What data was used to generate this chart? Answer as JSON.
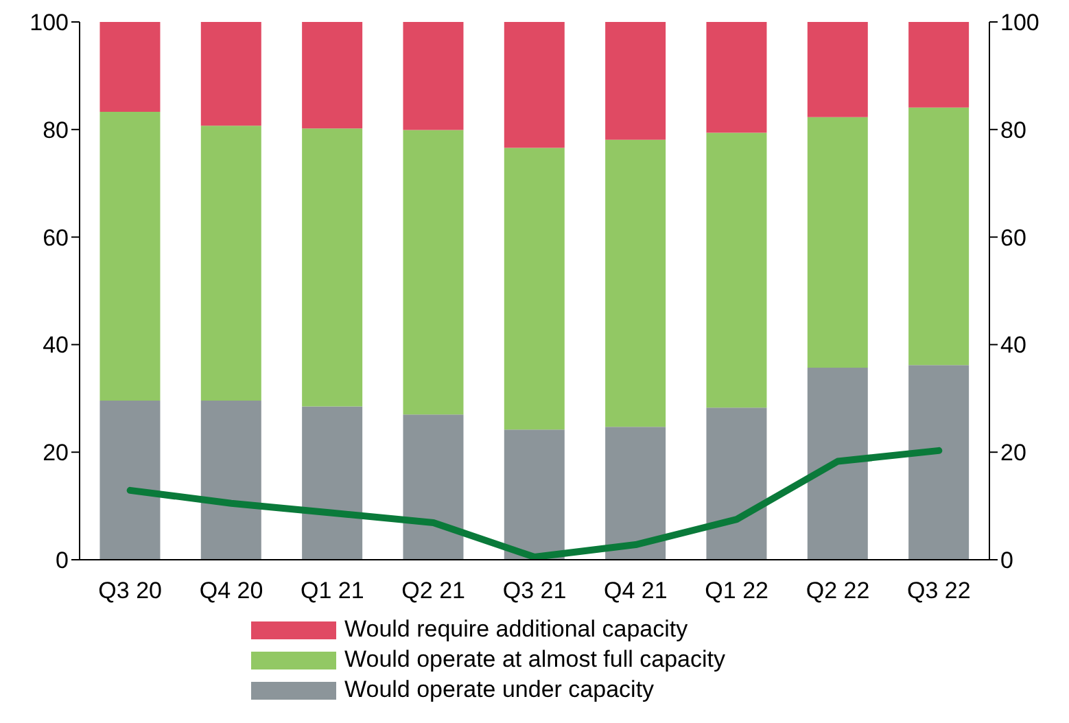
{
  "chart_data": {
    "type": "bar",
    "stacked": true,
    "categories": [
      "Q3 20",
      "Q4 20",
      "Q1 21",
      "Q2 21",
      "Q3 21",
      "Q4 21",
      "Q1 22",
      "Q2 22",
      "Q3 22"
    ],
    "series": [
      {
        "name": "Would operate under capacity",
        "color": "#8c959a",
        "values": [
          29.6,
          29.6,
          28.5,
          27,
          24.2,
          24.7,
          28.3,
          35.7,
          36.2
        ]
      },
      {
        "name": "Would operate at almost full capacity",
        "color": "#92c864",
        "values": [
          53.7,
          51.1,
          51.7,
          52.9,
          52.4,
          53.4,
          51.1,
          46.6,
          47.9
        ]
      },
      {
        "name": "Would require additional capacity",
        "color": "#e04a63",
        "values": [
          16.7,
          19.3,
          19.8,
          20.1,
          23.4,
          21.9,
          20.6,
          17.7,
          15.9
        ]
      },
      {
        "type": "line",
        "color": "#0a7a3a",
        "values": [
          12.9,
          10.5,
          8.7,
          6.9,
          0.5,
          2.8,
          7.5,
          18.3,
          20.3
        ]
      }
    ],
    "ylim": [
      0,
      100
    ],
    "yticks": [
      0,
      20,
      40,
      60,
      80,
      100
    ],
    "y2lim": [
      0,
      100
    ],
    "y2ticks": [
      0,
      20,
      40,
      60,
      80,
      100
    ],
    "grid": false,
    "legend": "bottom",
    "marker": "none"
  }
}
